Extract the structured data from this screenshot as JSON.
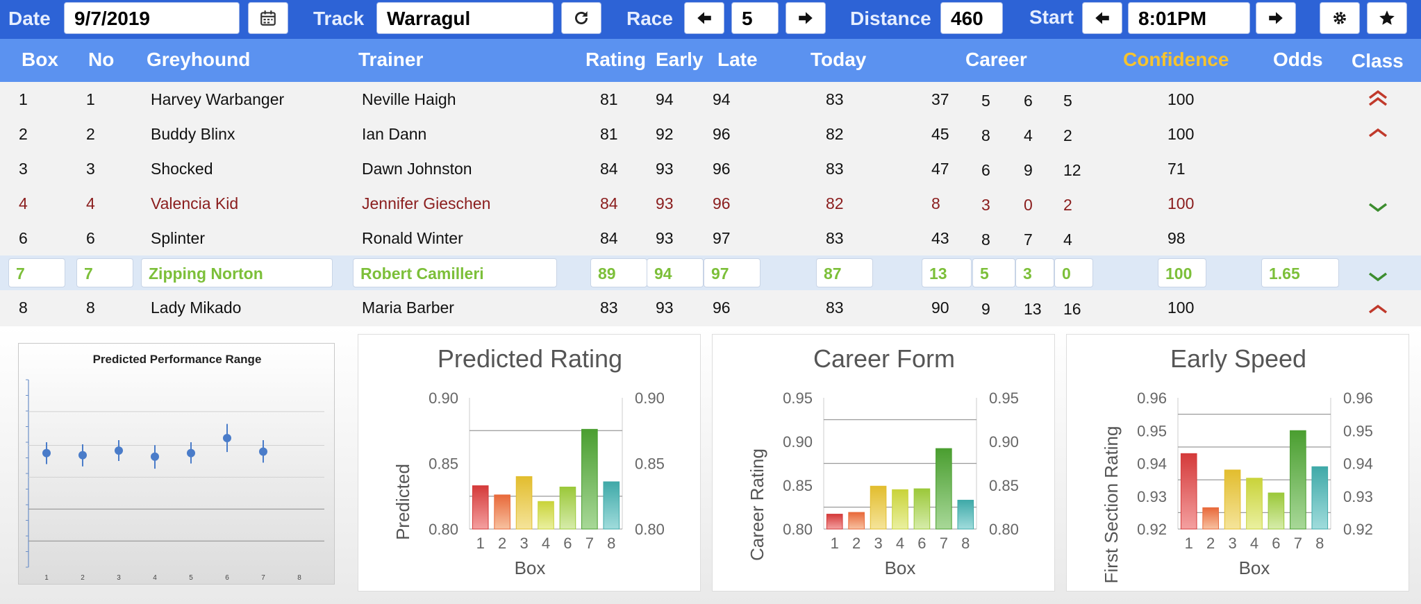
{
  "toolbar": {
    "date_label": "Date",
    "date_value": "9/7/2019",
    "calendar_icon": "calendar-icon",
    "track_label": "Track",
    "track_value": "Warragul",
    "refresh_icon": "refresh-icon",
    "race_label": "Race",
    "race_value": "5",
    "distance_label": "Distance",
    "distance_value": "460",
    "start_label": "Start",
    "start_value": "8:01PM",
    "settings_icon": "gear-icon",
    "favorite_icon": "star-icon"
  },
  "columns": {
    "box": "Box",
    "no": "No",
    "greyhound": "Greyhound",
    "trainer": "Trainer",
    "rating": "Rating",
    "early": "Early",
    "late": "Late",
    "today": "Today",
    "career": "Career",
    "confidence": "Confidence",
    "odds": "Odds",
    "class": "Class"
  },
  "colors": {
    "confidence_header": "#f6c32e",
    "selected_text": "#7cbf39",
    "scratched_text": "#8a1d1d",
    "class_up": "#c0392b",
    "class_down": "#3c8d2f"
  },
  "rows": [
    {
      "box": "1",
      "no": "1",
      "greyhound": "Harvey Warbanger",
      "trainer": "Neville Haigh",
      "rating": "81",
      "early": "94",
      "late": "94",
      "today": "83",
      "c1": "37",
      "c2": "5",
      "c3": "6",
      "c4": "5",
      "confidence": "100",
      "odds": "",
      "class": "double-up"
    },
    {
      "box": "2",
      "no": "2",
      "greyhound": "Buddy Blinx",
      "trainer": "Ian Dann",
      "rating": "81",
      "early": "92",
      "late": "96",
      "today": "82",
      "c1": "45",
      "c2": "8",
      "c3": "4",
      "c4": "2",
      "confidence": "100",
      "odds": "",
      "class": "up"
    },
    {
      "box": "3",
      "no": "3",
      "greyhound": "Shocked",
      "trainer": "Dawn Johnston",
      "rating": "84",
      "early": "93",
      "late": "96",
      "today": "83",
      "c1": "47",
      "c2": "6",
      "c3": "9",
      "c4": "12",
      "confidence": "71",
      "odds": "",
      "class": ""
    },
    {
      "box": "4",
      "no": "4",
      "greyhound": "Valencia Kid",
      "trainer": "Jennifer Gieschen",
      "rating": "84",
      "early": "93",
      "late": "96",
      "today": "82",
      "c1": "8",
      "c2": "3",
      "c3": "0",
      "c4": "2",
      "confidence": "100",
      "odds": "",
      "class": "down"
    },
    {
      "box": "6",
      "no": "6",
      "greyhound": "Splinter",
      "trainer": "Ronald Winter",
      "rating": "84",
      "early": "93",
      "late": "97",
      "today": "83",
      "c1": "43",
      "c2": "8",
      "c3": "7",
      "c4": "4",
      "confidence": "98",
      "odds": "",
      "class": ""
    },
    {
      "box": "7",
      "no": "7",
      "greyhound": "Zipping Norton",
      "trainer": "Robert Camilleri",
      "rating": "89",
      "early": "94",
      "late": "97",
      "today": "87",
      "c1": "13",
      "c2": "5",
      "c3": "3",
      "c4": "0",
      "confidence": "100",
      "odds": "1.65",
      "class": "down"
    },
    {
      "box": "8",
      "no": "8",
      "greyhound": "Lady Mikado",
      "trainer": "Maria Barber",
      "rating": "83",
      "early": "93",
      "late": "96",
      "today": "83",
      "c1": "90",
      "c2": "9",
      "c3": "13",
      "c4": "16",
      "confidence": "100",
      "odds": "",
      "class": "up"
    }
  ],
  "chart_data": [
    {
      "type": "scatter",
      "title": "Predicted Performance Range",
      "x": [
        "1",
        "2",
        "3",
        "4",
        "5",
        "6",
        "7",
        "8"
      ],
      "center": [
        0.548,
        0.538,
        0.56,
        0.531,
        0.548,
        0.62,
        0.555,
        null
      ],
      "low": [
        0.495,
        0.484,
        0.51,
        0.473,
        0.498,
        0.553,
        0.502,
        null
      ],
      "high": [
        0.6,
        0.59,
        0.61,
        0.586,
        0.6,
        0.688,
        0.61,
        null
      ],
      "ylim": [
        0,
        1
      ],
      "grid": true
    },
    {
      "type": "bar",
      "title": "Predicted Rating",
      "categories": [
        "1",
        "2",
        "3",
        "4",
        "6",
        "7",
        "8"
      ],
      "values": [
        0.833,
        0.826,
        0.84,
        0.821,
        0.832,
        0.876,
        0.836
      ],
      "xlabel": "Box",
      "ylabel": "Predicted",
      "ylim": [
        0.8,
        0.9
      ],
      "yticks": [
        "0.80",
        "0.85",
        "0.90"
      ],
      "gridlines": [
        0.875,
        0.825
      ]
    },
    {
      "type": "bar",
      "title": "Career Form",
      "categories": [
        "1",
        "2",
        "3",
        "4",
        "6",
        "7",
        "8"
      ],
      "values": [
        0.817,
        0.819,
        0.849,
        0.845,
        0.846,
        0.892,
        0.833
      ],
      "xlabel": "Box",
      "ylabel": "Career Rating",
      "ylim": [
        0.8,
        0.95
      ],
      "yticks": [
        "0.80",
        "0.85",
        "0.90",
        "0.95"
      ],
      "gridlines": [
        0.925,
        0.875,
        0.825
      ]
    },
    {
      "type": "bar",
      "title": "Early Speed",
      "categories": [
        "1",
        "2",
        "3",
        "4",
        "6",
        "7",
        "8"
      ],
      "values": [
        0.943,
        0.9265,
        0.938,
        0.9355,
        0.931,
        0.95,
        0.939
      ],
      "xlabel": "Box",
      "ylabel": "First Section Rating",
      "ylim": [
        0.92,
        0.96
      ],
      "yticks": [
        "0.92",
        "0.93",
        "0.94",
        "0.95",
        "0.96"
      ],
      "gridlines": [
        0.955,
        0.945,
        0.935,
        0.925
      ]
    }
  ]
}
